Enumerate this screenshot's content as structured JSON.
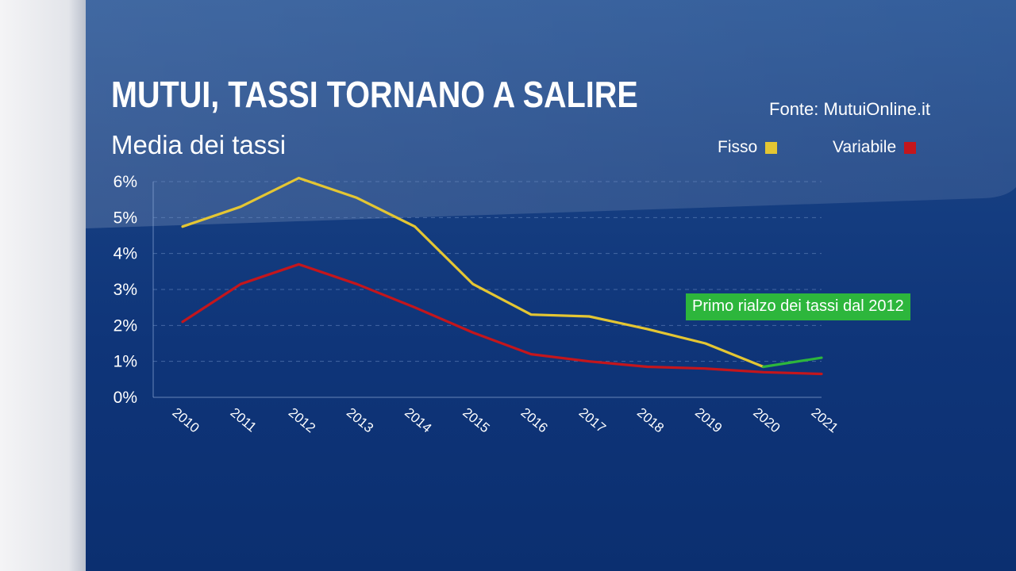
{
  "title": "MUTUI, TASSI TORNANO A SALIRE",
  "subtitle": "Media dei tassi",
  "source": "Fonte: MutuiOnline.it",
  "annotation": "Primo rialzo dei tassi dal 2012",
  "colors": {
    "fisso": "#e4c633",
    "variabile": "#c4161c",
    "rialzo": "#2db63c",
    "background": "#123c80"
  },
  "chart_data": {
    "type": "line",
    "title": "MUTUI, TASSI TORNANO A SALIRE",
    "subtitle": "Media dei tassi",
    "x": [
      "2010",
      "2011",
      "2012",
      "2013",
      "2014",
      "2015",
      "2016",
      "2017",
      "2018",
      "2019",
      "2020",
      "2021"
    ],
    "y_ticks": [
      "0%",
      "1%",
      "2%",
      "3%",
      "4%",
      "5%",
      "6%"
    ],
    "ylim": [
      0,
      6
    ],
    "grid": true,
    "legend_position": "top-right",
    "series": [
      {
        "name": "Fisso",
        "color": "#e4c633",
        "values": [
          4.75,
          5.3,
          6.1,
          5.55,
          4.75,
          3.15,
          2.3,
          2.25,
          1.9,
          1.5,
          0.85,
          1.1
        ]
      },
      {
        "name": "Variabile",
        "color": "#c4161c",
        "values": [
          2.1,
          3.15,
          3.7,
          3.15,
          2.5,
          1.8,
          1.2,
          1.0,
          0.85,
          0.8,
          0.7,
          0.65
        ]
      }
    ],
    "highlight": {
      "series": "Fisso",
      "from": "2020",
      "to": "2021",
      "color": "#2db63c"
    }
  }
}
